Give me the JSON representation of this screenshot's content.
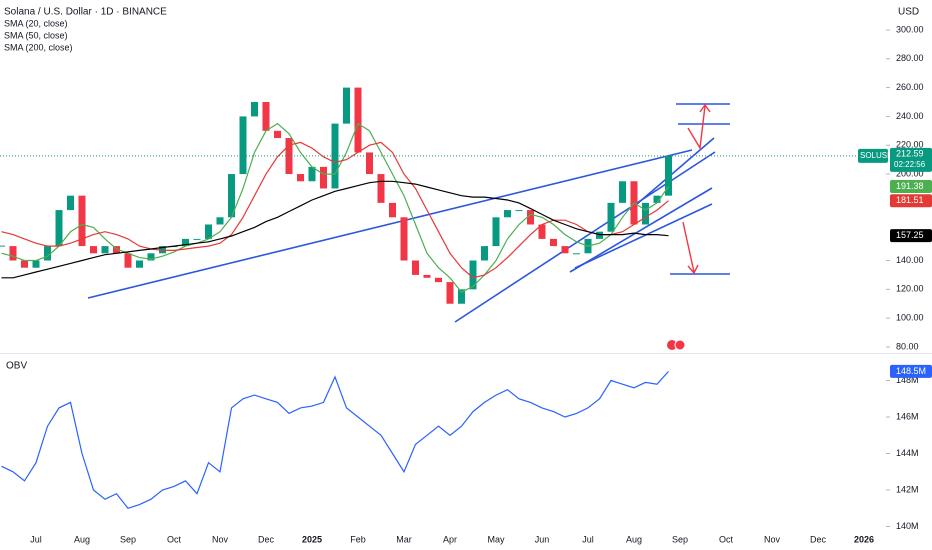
{
  "chart_data": [
    {
      "type": "candlestick",
      "title": "Solana / U.S. Dollar · 1D · BINANCE",
      "unit": "USD",
      "symbol": "SOLUSD",
      "countdown": "02:22:56",
      "up_color": "#089981",
      "down_color": "#f23645",
      "categories": [
        null,
        null,
        null,
        "Jul",
        null,
        null,
        null,
        "Aug",
        null,
        null,
        null,
        "Sep",
        null,
        null,
        null,
        "Oct",
        null,
        null,
        null,
        "Nov",
        null,
        null,
        null,
        "Dec",
        null,
        null,
        null,
        "2025",
        null,
        null,
        null,
        "Feb",
        null,
        null,
        null,
        "Mar",
        null,
        null,
        null,
        "Apr",
        null,
        null,
        null,
        "May",
        null,
        null,
        null,
        "Jun",
        null,
        null,
        null,
        "Jul",
        null,
        null,
        null,
        "Aug",
        null,
        null,
        null,
        "Sep",
        null,
        null,
        null,
        "Oct",
        null,
        null,
        null,
        "Nov",
        null,
        null,
        null,
        "Dec",
        null,
        null,
        null,
        "2026"
      ],
      "series": [
        {
          "name": "SOLUSD",
          "color": "#089981",
          "values": [
            150,
            140,
            135,
            140,
            150,
            175,
            185,
            150,
            145,
            150,
            145,
            135,
            140,
            145,
            150,
            150,
            155,
            155,
            165,
            170,
            200,
            240,
            250,
            230,
            225,
            200,
            195,
            205,
            190,
            235,
            260,
            215,
            200,
            180,
            170,
            140,
            130,
            128,
            125,
            110,
            120,
            140,
            150,
            170,
            175,
            175,
            165,
            155,
            150,
            145,
            145,
            155,
            160,
            180,
            195,
            165,
            180,
            185,
            212.59,
            null,
            null,
            null,
            null,
            null,
            null,
            null,
            null,
            null,
            null,
            null,
            null,
            null,
            null,
            null,
            null,
            null
          ]
        },
        {
          "name": "SMA (20, close)",
          "type": "line",
          "color": "#4caf50",
          "values": [
            145,
            143,
            140,
            140,
            143,
            150,
            160,
            165,
            163,
            155,
            148,
            145,
            142,
            141,
            143,
            146,
            150,
            152,
            155,
            160,
            170,
            190,
            215,
            230,
            235,
            228,
            215,
            205,
            200,
            200,
            215,
            235,
            230,
            215,
            200,
            185,
            165,
            145,
            135,
            128,
            118,
            122,
            130,
            140,
            155,
            165,
            172,
            170,
            165,
            158,
            153,
            150,
            152,
            158,
            170,
            180,
            175,
            180,
            191.38,
            null,
            null,
            null,
            null,
            null,
            null,
            null,
            null,
            null,
            null,
            null,
            null,
            null,
            null,
            null,
            null,
            null
          ]
        },
        {
          "name": "SMA (50, close)",
          "type": "line",
          "color": "#e53935",
          "values": [
            160,
            158,
            155,
            152,
            150,
            150,
            152,
            155,
            158,
            160,
            158,
            155,
            150,
            148,
            147,
            147,
            148,
            149,
            150,
            152,
            158,
            170,
            185,
            200,
            212,
            220,
            222,
            218,
            212,
            208,
            210,
            215,
            220,
            222,
            215,
            200,
            190,
            175,
            160,
            145,
            135,
            128,
            130,
            135,
            142,
            150,
            158,
            165,
            168,
            168,
            165,
            160,
            158,
            158,
            160,
            165,
            170,
            175,
            181.51,
            null,
            null,
            null,
            null,
            null,
            null,
            null,
            null,
            null,
            null,
            null,
            null,
            null,
            null,
            null,
            null,
            null
          ]
        },
        {
          "name": "SMA (200, close)",
          "type": "line",
          "color": "#000000",
          "values": [
            128,
            128,
            130,
            132,
            134,
            136,
            138,
            140,
            142,
            144,
            145,
            146,
            147,
            148,
            149,
            150,
            151,
            152,
            153,
            155,
            157,
            160,
            163,
            167,
            170,
            174,
            178,
            182,
            185,
            188,
            190,
            192,
            194,
            195,
            195,
            194,
            193,
            191,
            189,
            187,
            185,
            184,
            184,
            183,
            182,
            180,
            176,
            172,
            168,
            165,
            162,
            160,
            158,
            158,
            158,
            159,
            158,
            158,
            157.25,
            null,
            null,
            null,
            null,
            null,
            null,
            null,
            null,
            null,
            null,
            null,
            null,
            null,
            null,
            null,
            null,
            null
          ]
        }
      ],
      "ylim": [
        76.5,
        320.8
      ],
      "yticks": [
        {
          "value": 300,
          "label": "300.00"
        },
        {
          "value": 280,
          "label": "280.00"
        },
        {
          "value": 260,
          "label": "260.00"
        },
        {
          "value": 240,
          "label": "240.00"
        },
        {
          "value": 220,
          "label": "220.00"
        },
        {
          "value": 200,
          "label": "200.00"
        },
        {
          "value": 140,
          "label": "140.00"
        },
        {
          "value": 120,
          "label": "120.00"
        },
        {
          "value": 100,
          "label": "100.00"
        },
        {
          "value": 80,
          "label": "80.00"
        }
      ]
    },
    {
      "type": "line",
      "title": "OBV",
      "categories": [
        null,
        null,
        null,
        "Jul",
        null,
        null,
        null,
        "Aug",
        null,
        null,
        null,
        "Sep",
        null,
        null,
        null,
        "Oct",
        null,
        null,
        null,
        "Nov",
        null,
        null,
        null,
        "Dec",
        null,
        null,
        null,
        "2025",
        null,
        null,
        null,
        "Feb",
        null,
        null,
        null,
        "Mar",
        null,
        null,
        null,
        "Apr",
        null,
        null,
        null,
        "May",
        null,
        null,
        null,
        "Jun",
        null,
        null,
        null,
        "Jul",
        null,
        null,
        null,
        "Aug",
        null,
        null,
        null,
        "Sep",
        null,
        null,
        null,
        "Oct",
        null,
        null,
        null,
        "Nov",
        null,
        null,
        null,
        "Dec",
        null,
        null,
        null,
        "2026"
      ],
      "series": [
        {
          "name": "OBV",
          "color": "#2962ff",
          "values": [
            143.3,
            143.0,
            142.5,
            143.5,
            145.5,
            146.5,
            146.8,
            144.0,
            142.0,
            141.5,
            141.8,
            141.0,
            141.2,
            141.5,
            142.0,
            142.2,
            142.5,
            141.8,
            143.5,
            143.0,
            146.5,
            147.0,
            147.2,
            147.0,
            146.8,
            146.2,
            146.5,
            146.6,
            146.8,
            148.2,
            146.5,
            146.0,
            145.5,
            145.0,
            144.0,
            143.0,
            144.5,
            145.0,
            145.5,
            145.0,
            145.5,
            146.3,
            146.8,
            147.2,
            147.5,
            147.0,
            146.8,
            146.5,
            146.3,
            146.0,
            146.2,
            146.5,
            147.0,
            148.0,
            147.8,
            147.6,
            147.9,
            147.8,
            148.5,
            null,
            null,
            null,
            null,
            null,
            null,
            null,
            null,
            null,
            null,
            null,
            null,
            null,
            null,
            null,
            null,
            null
          ],
          "value_labels": [
            null,
            null,
            null,
            null,
            null,
            null,
            null,
            null,
            null,
            null,
            null,
            null,
            null,
            null,
            null,
            null,
            null,
            null,
            null,
            null,
            null,
            null,
            null,
            null,
            null,
            null,
            null,
            null,
            null,
            null,
            null,
            null,
            null,
            null,
            null,
            null,
            null,
            null,
            null,
            null,
            null,
            null,
            null,
            null,
            null,
            null,
            null,
            null,
            null,
            null,
            null,
            null,
            null,
            null,
            null,
            null,
            null,
            null,
            "148.5M",
            null,
            null,
            null,
            null,
            null,
            null,
            null,
            null,
            null,
            null,
            null,
            null,
            null,
            null,
            null,
            null,
            null
          ]
        }
      ],
      "ylim": [
        139.7,
        149.4
      ],
      "yticks": [
        {
          "value": 148,
          "label": "148M"
        },
        {
          "value": 146,
          "label": "146M"
        },
        {
          "value": 144,
          "label": "144M"
        },
        {
          "value": 142,
          "label": "142M"
        },
        {
          "value": 140,
          "label": "140M"
        }
      ]
    }
  ]
}
